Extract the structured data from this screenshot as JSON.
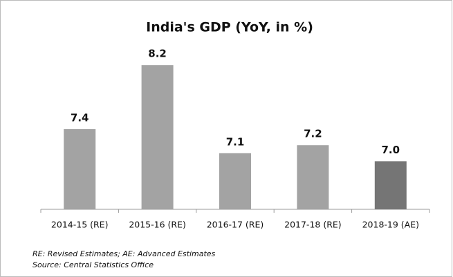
{
  "chart_data": {
    "type": "bar",
    "title": "India's GDP (YoY, in %)",
    "categories": [
      "2014-15 (RE)",
      "2015-16 (RE)",
      "2016-17 (RE)",
      "2017-18 (RE)",
      "2018-19 (AE)"
    ],
    "values": [
      7.4,
      8.2,
      7.1,
      7.2,
      7.0
    ],
    "value_labels": [
      "7.4",
      "8.2",
      "7.1",
      "7.2",
      "7.0"
    ],
    "colors": [
      "#a3a3a3",
      "#a3a3a3",
      "#a3a3a3",
      "#a3a3a3",
      "#757575"
    ],
    "ylim": [
      6.4,
      8.6
    ],
    "notes": [
      "RE: Revised Estimates; AE: Advanced Estimates",
      "Source: Central Statistics Office"
    ]
  }
}
